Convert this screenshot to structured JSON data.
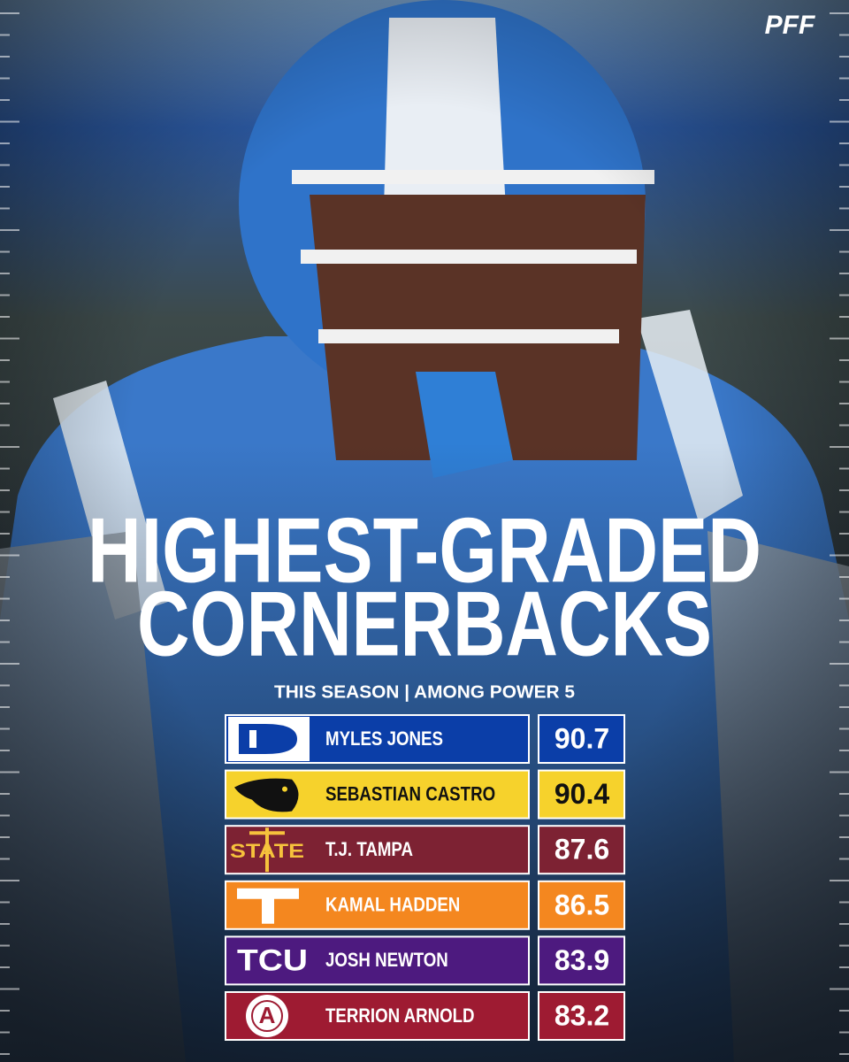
{
  "brand": "PFF",
  "title_lines": [
    "HIGHEST-GRADED",
    "CORNERBACKS"
  ],
  "subtitle": "THIS SEASON | AMONG POWER 5",
  "rows": [
    {
      "name": "MYLES JONES",
      "grade": "90.7",
      "color": "#0b3ea8",
      "text_color": "#ffffff"
    },
    {
      "name": "SEBASTIAN CASTRO",
      "grade": "90.4",
      "color": "#f6d22c",
      "text_color": "#111111"
    },
    {
      "name": "T.J. TAMPA",
      "grade": "87.6",
      "color": "#7d2233",
      "text_color": "#ffffff",
      "logo": "STATE"
    },
    {
      "name": "KAMAL HADDEN",
      "grade": "86.5",
      "color": "#f4871f",
      "text_color": "#ffffff"
    },
    {
      "name": "JOSH NEWTON",
      "grade": "83.9",
      "color": "#4d1a7f",
      "text_color": "#ffffff",
      "logo": "TCU"
    },
    {
      "name": "TERRION ARNOLD",
      "grade": "83.2",
      "color": "#9e1b32",
      "text_color": "#ffffff",
      "logo": "A"
    }
  ]
}
